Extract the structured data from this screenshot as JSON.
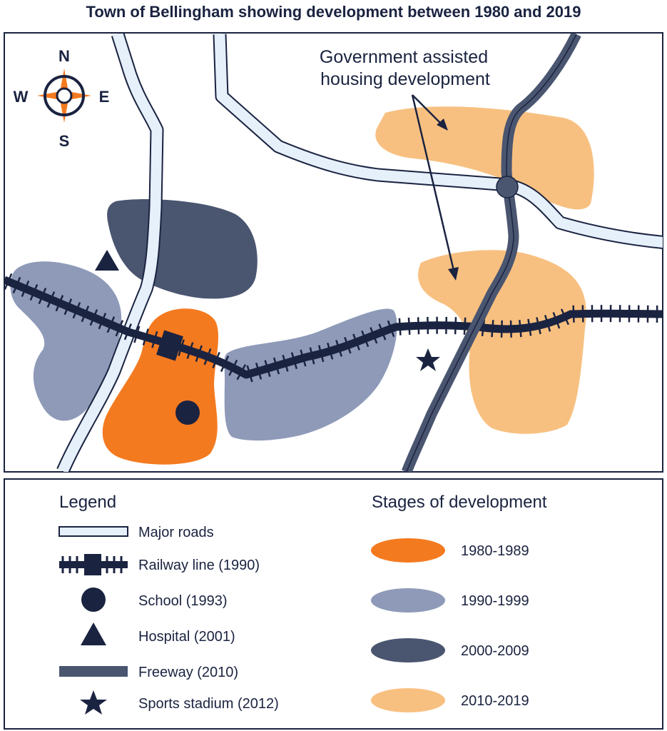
{
  "title": "Town of Bellingham showing development between 1980 and 2019",
  "compass": {
    "n": "N",
    "s": "S",
    "e": "E",
    "w": "W"
  },
  "annotation": {
    "line1": "Government assisted",
    "line2": "housing development"
  },
  "legend": {
    "heading": "Legend",
    "items": [
      {
        "label": "Major roads",
        "icon": "road-icon"
      },
      {
        "label": "Railway line (1990)",
        "icon": "railway-icon"
      },
      {
        "label": "School (1993)",
        "icon": "circle-icon"
      },
      {
        "label": "Hospital (2001)",
        "icon": "triangle-icon"
      },
      {
        "label": "Freeway (2010)",
        "icon": "freeway-icon"
      },
      {
        "label": "Sports stadium (2012)",
        "icon": "star-icon"
      }
    ]
  },
  "stages": {
    "heading": "Stages of development",
    "items": [
      {
        "label": "1980-1989",
        "color": "#f47a20"
      },
      {
        "label": "1990-1999",
        "color": "#8e9ab8"
      },
      {
        "label": "2000-2009",
        "color": "#4a5570"
      },
      {
        "label": "2010-2019",
        "color": "#f8c080"
      }
    ]
  },
  "colors": {
    "navy": "#1a2340",
    "road_fill": "#e6f0fb",
    "freeway": "#4a5570",
    "compass_orange": "#f47a20"
  }
}
